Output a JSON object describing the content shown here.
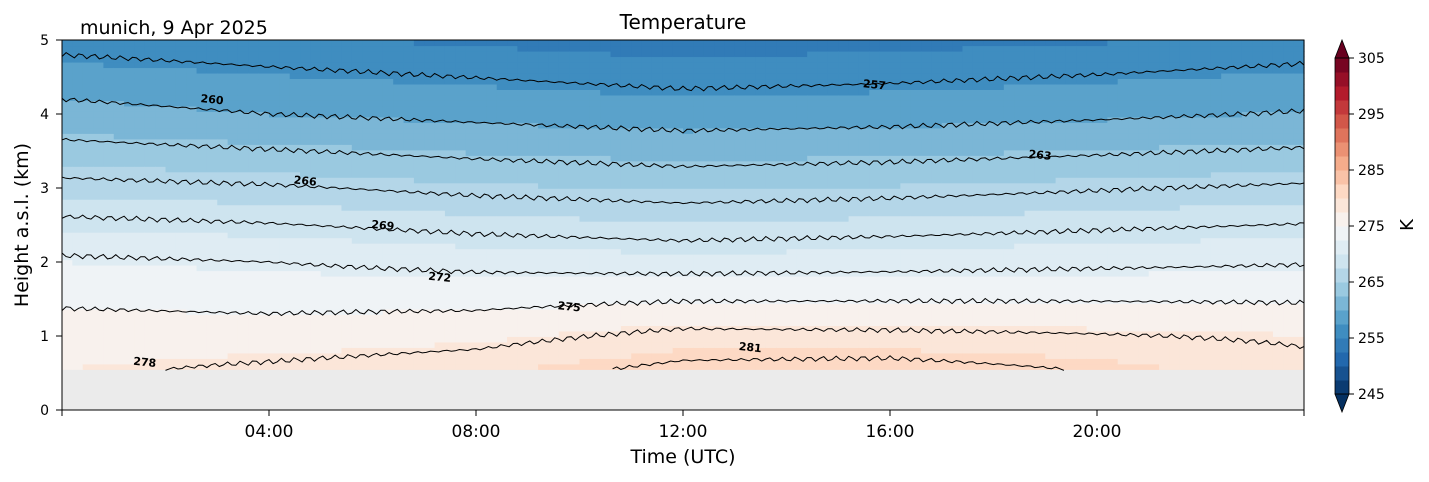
{
  "chart_data": {
    "type": "heatmap",
    "title": "Temperature",
    "subtitle": "munich, 9 Apr 2025",
    "xlabel": "Time (UTC)",
    "ylabel": "Height a.s.l. (km)",
    "xlim": [
      0,
      24
    ],
    "ylim": [
      0,
      5
    ],
    "x_ticks": [
      4,
      8,
      12,
      16,
      20
    ],
    "x_tick_labels": [
      "04:00",
      "08:00",
      "12:00",
      "16:00",
      "20:00"
    ],
    "y_ticks": [
      0,
      1,
      2,
      3,
      4,
      5
    ],
    "y_tick_labels": [
      "0",
      "1",
      "2",
      "3",
      "4",
      "5"
    ],
    "data_bottom_km": 0.55,
    "colorbar": {
      "label": "K",
      "min": 245,
      "max": 305,
      "step": 2.5,
      "ticks": [
        245,
        255,
        265,
        275,
        285,
        295,
        305
      ],
      "tick_labels": [
        "245",
        "255",
        "265",
        "275",
        "285",
        "295",
        "305"
      ],
      "extend": "both",
      "colormap": "RdBu_r",
      "colors": [
        "#053061",
        "#2166ac",
        "#4393c3",
        "#92c5de",
        "#d1e5f0",
        "#f7f7f7",
        "#fddbc7",
        "#f4a582",
        "#d6604d",
        "#b2182b",
        "#67001f"
      ]
    },
    "missing_color": "#ebebeb",
    "contour_levels": [
      257,
      260,
      263,
      266,
      269,
      272,
      275,
      278,
      281
    ],
    "contour_labels": [
      {
        "text": "257",
        "x": 15.7,
        "z": 4.4
      },
      {
        "text": "260",
        "x": 2.9,
        "z": 4.2
      },
      {
        "text": "263",
        "x": 18.9,
        "z": 3.45
      },
      {
        "text": "266",
        "x": 4.7,
        "z": 3.1
      },
      {
        "text": "269",
        "x": 6.2,
        "z": 2.5
      },
      {
        "text": "272",
        "x": 7.3,
        "z": 1.8
      },
      {
        "text": "275",
        "x": 9.8,
        "z": 1.4
      },
      {
        "text": "278",
        "x": 1.6,
        "z": 0.65
      },
      {
        "text": "281",
        "x": 13.3,
        "z": 0.85
      }
    ],
    "profiles": [
      {
        "time": 0,
        "z": [
          0.55,
          1,
          2,
          3,
          4,
          5
        ],
        "T": [
          277.5,
          276.5,
          272.5,
          266.8,
          261.0,
          256.0
        ]
      },
      {
        "time": 4,
        "z": [
          0.55,
          1,
          2,
          3,
          4,
          5
        ],
        "T": [
          278.5,
          276.3,
          272.0,
          266.3,
          260.0,
          255.3
        ]
      },
      {
        "time": 8,
        "z": [
          0.55,
          1,
          2,
          3,
          4,
          5
        ],
        "T": [
          279.5,
          277.0,
          271.2,
          265.4,
          259.3,
          254.6
        ]
      },
      {
        "time": 12,
        "z": [
          0.55,
          1,
          2,
          3,
          4,
          5
        ],
        "T": [
          281.8,
          278.8,
          270.7,
          264.8,
          258.6,
          253.9
        ]
      },
      {
        "time": 16,
        "z": [
          0.55,
          1,
          2,
          3,
          4,
          5
        ],
        "T": [
          282.2,
          278.6,
          271.0,
          265.2,
          258.9,
          254.3
        ]
      },
      {
        "time": 20,
        "z": [
          0.55,
          1,
          2,
          3,
          4,
          5
        ],
        "T": [
          280.8,
          278.2,
          271.4,
          265.8,
          259.5,
          254.8
        ]
      },
      {
        "time": 24,
        "z": [
          0.55,
          1,
          2,
          3,
          4,
          5
        ],
        "T": [
          278.8,
          277.6,
          271.8,
          266.4,
          260.2,
          255.5
        ]
      }
    ]
  }
}
